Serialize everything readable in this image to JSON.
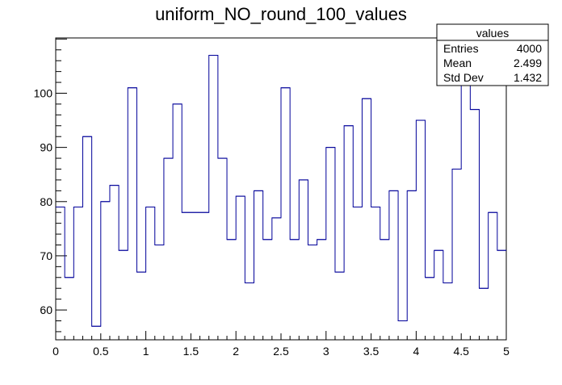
{
  "chart_data": {
    "type": "histogram",
    "title": "uniform_NO_round_100_values",
    "xlim": [
      0,
      5
    ],
    "ylim": [
      54.5,
      110.2
    ],
    "bins": 50,
    "values": [
      79,
      66,
      79,
      92,
      57,
      80,
      83,
      71,
      101,
      67,
      79,
      72,
      88,
      98,
      78,
      78,
      78,
      107,
      88,
      73,
      81,
      65,
      82,
      73,
      77,
      101,
      73,
      84,
      72,
      73,
      90,
      67,
      94,
      79,
      99,
      79,
      73,
      82,
      58,
      82,
      95,
      66,
      71,
      65,
      86,
      105,
      97,
      64,
      78,
      71
    ],
    "x_ticks": [
      "0",
      "0.5",
      "1",
      "1.5",
      "2",
      "2.5",
      "3",
      "3.5",
      "4",
      "4.5",
      "5"
    ],
    "y_ticks": [
      "60",
      "70",
      "80",
      "90",
      "100"
    ],
    "line_color": "#000099",
    "stats_box": {
      "title": "values",
      "rows": [
        {
          "label": "Entries",
          "value": "4000"
        },
        {
          "label": "Mean",
          "value": "2.499"
        },
        {
          "label": "Std Dev",
          "value": "1.432"
        }
      ]
    }
  }
}
